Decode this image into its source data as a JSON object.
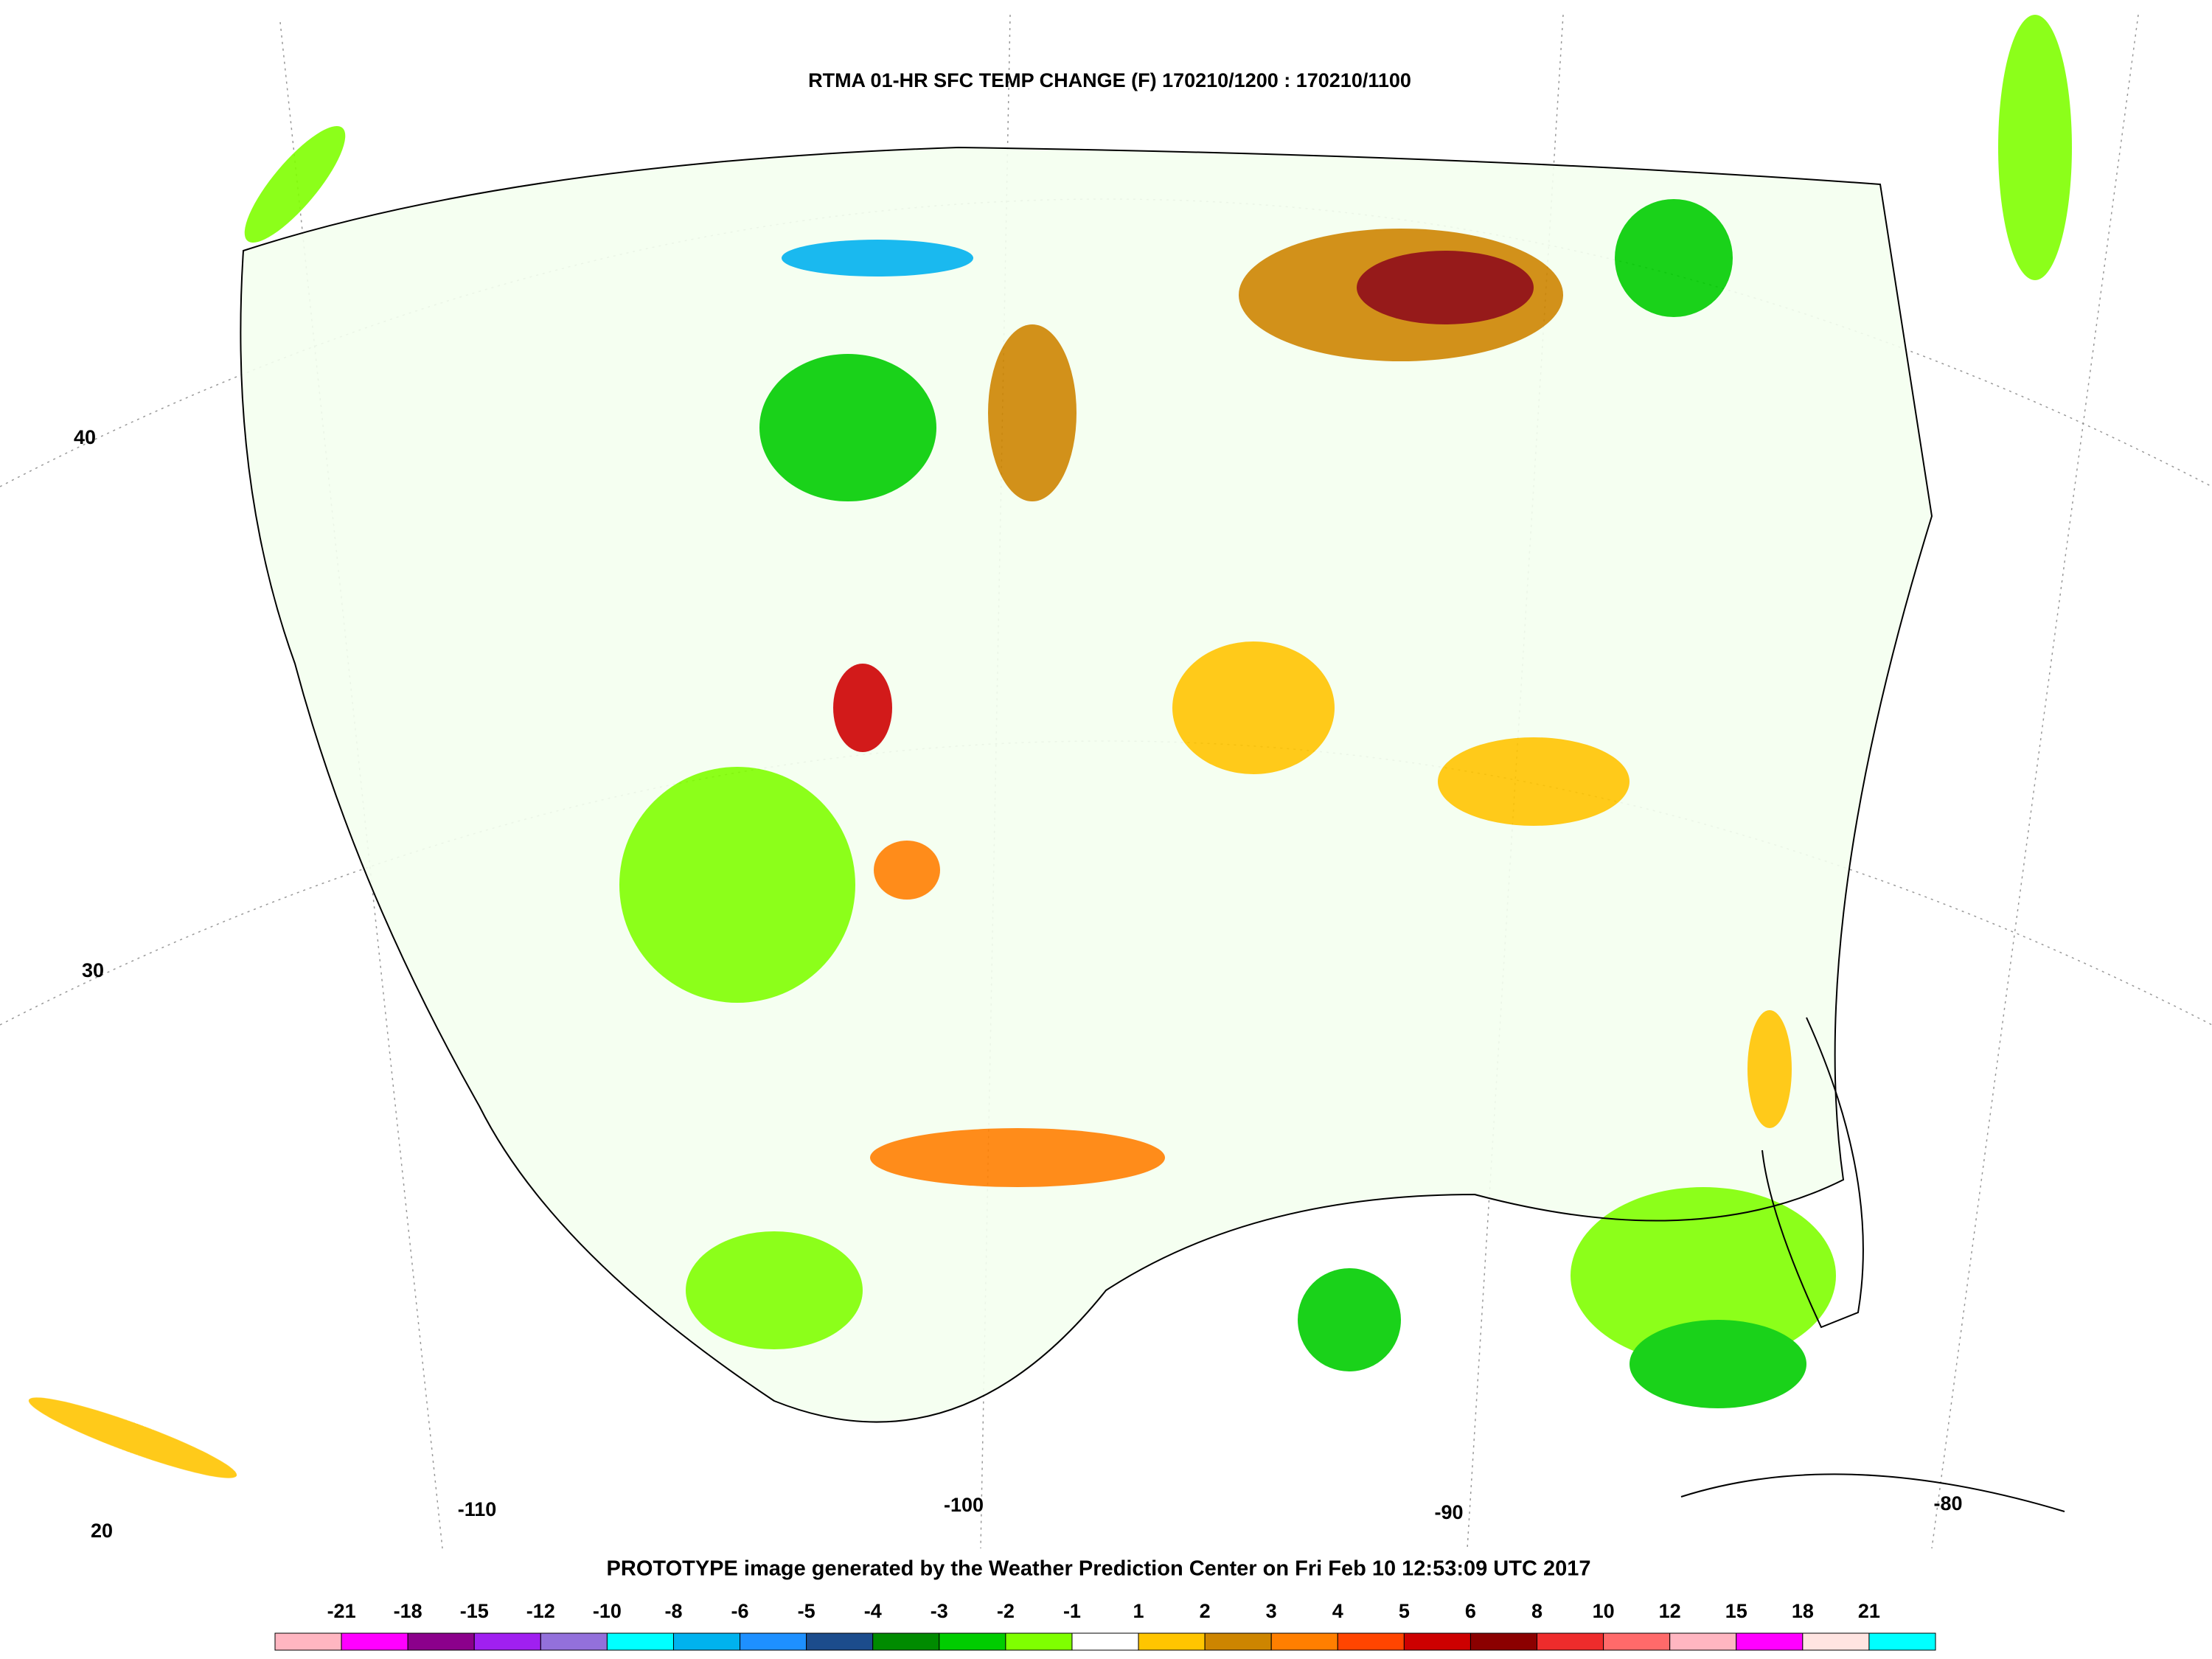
{
  "title": "RTMA 01-HR SFC TEMP CHANGE (F) 170210/1200 : 170210/1100",
  "footer": "PROTOTYPE image generated by the Weather Prediction Center on Fri Feb 10 12:53:09 UTC 2017",
  "lat_labels": [
    "40",
    "30",
    "20"
  ],
  "lon_labels": [
    "-110",
    "-100",
    "-90",
    "-80"
  ],
  "legend": {
    "labels": [
      "-21",
      "-18",
      "-15",
      "-12",
      "-10",
      "-8",
      "-6",
      "-5",
      "-4",
      "-3",
      "-2",
      "-1",
      "1",
      "2",
      "3",
      "4",
      "5",
      "6",
      "8",
      "10",
      "12",
      "15",
      "18",
      "21"
    ],
    "colors": [
      "#ffb6c1",
      "#ff00ff",
      "#8b008b",
      "#a020f0",
      "#9370db",
      "#00ffff",
      "#00b2ee",
      "#1e90ff",
      "#1c4c8c",
      "#008b00",
      "#00cd00",
      "#7fff00",
      "#ffffff",
      "#ffc500",
      "#cd8500",
      "#ff7f00",
      "#ff4500",
      "#cd0000",
      "#8b0000",
      "#ee2c2c",
      "#ff6a6a",
      "#ffb6c1",
      "#ff00ff",
      "#ffe4e1",
      "#00ffff"
    ]
  }
}
